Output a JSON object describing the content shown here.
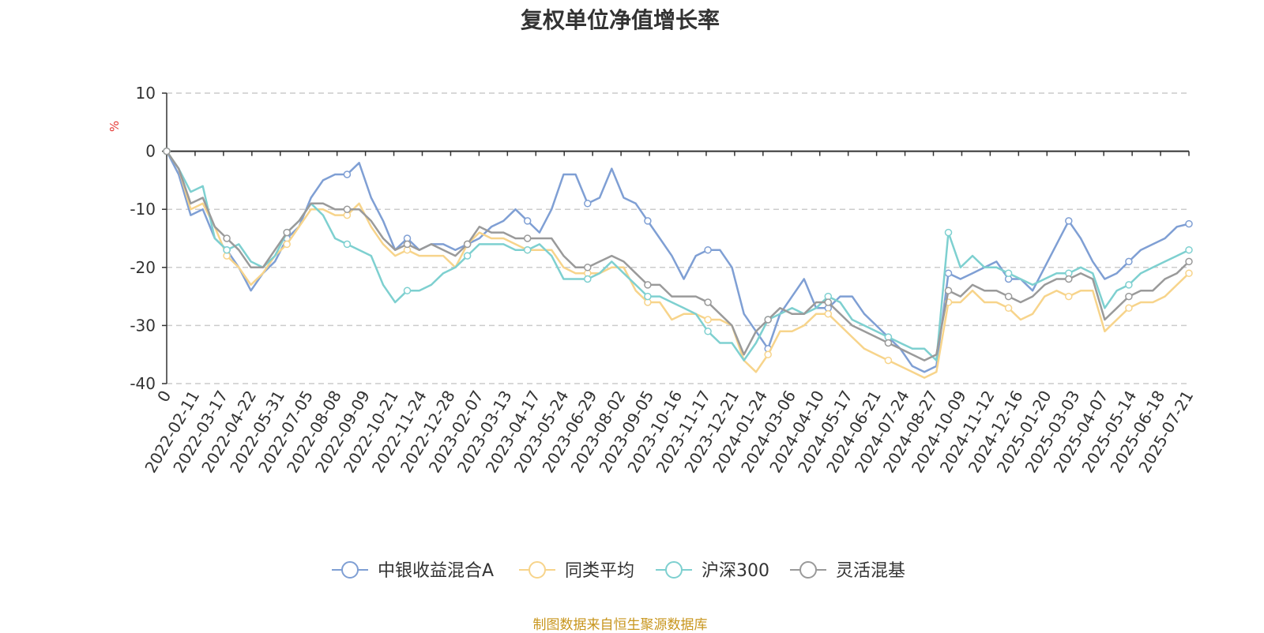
{
  "title": "复权单位净值增长率",
  "source_note": "制图数据来自恒生聚源数据库",
  "chart_data": {
    "type": "line",
    "title": "复权单位净值增长率",
    "ylabel": "%",
    "ylim": [
      -40,
      10
    ],
    "y_ticks": [
      "10",
      "0",
      "-10",
      "-20",
      "-30",
      "-40"
    ],
    "grid": true,
    "legend_position": "bottom",
    "x_tick_labels": [
      "0",
      "2022-02-11",
      "2022-03-17",
      "2022-04-22",
      "2022-05-31",
      "2022-07-05",
      "2022-08-08",
      "2022-09-09",
      "2022-10-21",
      "2022-11-24",
      "2022-12-28",
      "2023-02-07",
      "2023-03-13",
      "2023-04-17",
      "2023-05-24",
      "2023-06-29",
      "2023-08-02",
      "2023-09-05",
      "2023-10-16",
      "2023-11-17",
      "2023-12-21",
      "2024-01-24",
      "2024-03-06",
      "2024-04-10",
      "2024-05-17",
      "2024-06-21",
      "2024-07-24",
      "2024-08-27",
      "2024-10-09",
      "2024-11-12",
      "2024-12-16",
      "2025-01-20",
      "2025-03-03",
      "2025-04-07",
      "2025-05-14",
      "2025-06-18",
      "2025-07-21"
    ],
    "series": [
      {
        "name": "中银收益混合A",
        "color": "#7f9fd4",
        "values": [
          0,
          -4,
          -11,
          -10,
          -15,
          -17,
          -20,
          -24,
          -21,
          -19,
          -15,
          -13,
          -8,
          -5,
          -4,
          -4,
          -2,
          -8,
          -12,
          -17,
          -15,
          -17,
          -16,
          -16,
          -17,
          -16,
          -15,
          -13,
          -12,
          -10,
          -12,
          -14,
          -10,
          -4,
          -4,
          -9,
          -8,
          -3,
          -8,
          -9,
          -12,
          -15,
          -18,
          -22,
          -18,
          -17,
          -17,
          -20,
          -28,
          -31,
          -34,
          -28,
          -25,
          -22,
          -27,
          -27,
          -25,
          -25,
          -28,
          -30,
          -32,
          -34,
          -37,
          -38,
          -37,
          -21,
          -22,
          -21,
          -20,
          -19,
          -22,
          -22,
          -24,
          -20,
          -16,
          -12,
          -15,
          -19,
          -22,
          -21,
          -19,
          -17,
          -16,
          -15,
          -13,
          -12.5
        ]
      },
      {
        "name": "同类平均",
        "color": "#f7d48b",
        "values": [
          0,
          -3,
          -10,
          -9,
          -13,
          -18,
          -20,
          -23,
          -21,
          -18,
          -16,
          -13,
          -10,
          -10,
          -11,
          -11,
          -9,
          -13,
          -16,
          -18,
          -17,
          -18,
          -18,
          -18,
          -20,
          -16,
          -14,
          -15,
          -15,
          -16,
          -17,
          -17,
          -17,
          -20,
          -21,
          -21,
          -21,
          -20,
          -20,
          -24,
          -26,
          -26,
          -29,
          -28,
          -28,
          -29,
          -29,
          -30,
          -36,
          -38,
          -35,
          -31,
          -31,
          -30,
          -28,
          -28,
          -30,
          -32,
          -34,
          -35,
          -36,
          -37,
          -38,
          -39,
          -38,
          -26,
          -26,
          -24,
          -26,
          -26,
          -27,
          -29,
          -28,
          -25,
          -24,
          -25,
          -24,
          -24,
          -31,
          -29,
          -27,
          -26,
          -26,
          -25,
          -23,
          -21
        ]
      },
      {
        "name": "沪深300",
        "color": "#7ed0d0",
        "values": [
          0,
          -3,
          -7,
          -6,
          -15,
          -17,
          -16,
          -19,
          -20,
          -18,
          -14,
          -12,
          -9,
          -11,
          -15,
          -16,
          -17,
          -18,
          -23,
          -26,
          -24,
          -24,
          -23,
          -21,
          -20,
          -18,
          -16,
          -16,
          -16,
          -17,
          -17,
          -16,
          -18,
          -22,
          -22,
          -22,
          -21,
          -19,
          -21,
          -23,
          -25,
          -25,
          -26,
          -27,
          -28,
          -31,
          -33,
          -33,
          -36,
          -33,
          -29,
          -28,
          -27,
          -28,
          -27,
          -25,
          -26,
          -29,
          -30,
          -31,
          -32,
          -33,
          -34,
          -34,
          -36,
          -14,
          -20,
          -18,
          -20,
          -20,
          -21,
          -22,
          -23,
          -22,
          -21,
          -21,
          -20,
          -21,
          -27,
          -24,
          -23,
          -21,
          -20,
          -19,
          -18,
          -17
        ]
      },
      {
        "name": "灵活混基",
        "color": "#9a9a9a",
        "values": [
          0,
          -3,
          -9,
          -8,
          -13,
          -15,
          -17,
          -20,
          -20,
          -17,
          -14,
          -12,
          -9,
          -9,
          -10,
          -10,
          -10,
          -12,
          -15,
          -17,
          -16,
          -17,
          -16,
          -17,
          -18,
          -16,
          -13,
          -14,
          -14,
          -15,
          -15,
          -15,
          -15,
          -18,
          -20,
          -20,
          -19,
          -18,
          -19,
          -21,
          -23,
          -23,
          -25,
          -25,
          -25,
          -26,
          -28,
          -30,
          -35,
          -31,
          -29,
          -27,
          -28,
          -28,
          -26,
          -26,
          -28,
          -30,
          -31,
          -32,
          -33,
          -34,
          -35,
          -36,
          -35,
          -24,
          -25,
          -23,
          -24,
          -24,
          -25,
          -26,
          -25,
          -23,
          -22,
          -22,
          -21,
          -22,
          -29,
          -27,
          -25,
          -24,
          -24,
          -22,
          -21,
          -19
        ]
      }
    ]
  }
}
